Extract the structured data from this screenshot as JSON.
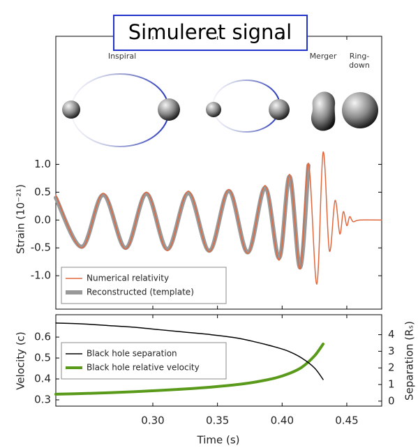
{
  "chart_data": [
    {
      "type": "line",
      "title": "Simuleret signal",
      "ylabel": "Strain (10⁻²¹)",
      "annotations": [
        "Inspiral",
        "Merger",
        "Ring-\ndown"
      ],
      "x": [
        0.225,
        0.245,
        0.2617,
        0.279,
        0.2951,
        0.3113,
        0.3275,
        0.3437,
        0.3588,
        0.3734,
        0.3869,
        0.3977,
        0.4058,
        0.4139,
        0.4203,
        0.4268,
        0.4317,
        0.4365,
        0.4409,
        0.4446,
        0.4473,
        0.45,
        0.4522,
        0.4549,
        0.4597,
        0.477
      ],
      "series": [
        {
          "name": "Numerical relativity",
          "color": "#e0683f",
          "width": 1.5,
          "values": [
            0.45,
            -0.5,
            0.48,
            -0.52,
            0.5,
            -0.55,
            0.52,
            -0.57,
            0.55,
            -0.6,
            0.62,
            -0.72,
            0.82,
            -0.88,
            1.02,
            -1.15,
            1.22,
            -0.55,
            0.35,
            -0.25,
            0.15,
            -0.1,
            0.06,
            -0.03,
            0,
            0
          ]
        },
        {
          "name": "Reconstructed (template)",
          "color": "#999999",
          "width": 6,
          "values": [
            0.4,
            -0.48,
            0.45,
            -0.5,
            0.47,
            -0.52,
            0.48,
            -0.55,
            0.52,
            -0.58,
            0.58,
            -0.68,
            0.78,
            -0.85,
            0.98,
            null,
            null,
            null,
            null,
            null,
            null,
            null,
            null,
            null,
            null,
            null
          ]
        }
      ],
      "xlim": [
        0.225,
        0.477
      ],
      "xticks": [
        0.3,
        0.35,
        0.4,
        0.45
      ],
      "ylim": [
        -1.6,
        3.3
      ],
      "yticks": [
        {
          "value": 1.0,
          "label": "1.0"
        },
        {
          "value": 0.5,
          "label": "0.5"
        },
        {
          "value": 0.0,
          "label": "0.0"
        },
        {
          "value": -0.5,
          "label": "-0.5"
        },
        {
          "value": -1.0,
          "label": "-1.0"
        }
      ],
      "legend": "lower left"
    },
    {
      "type": "line",
      "xlabel": "Time (s)",
      "ylabel": "Velocity (c)",
      "y2label": "Separation (Rₛ)",
      "x": [
        0.225,
        0.245,
        0.265,
        0.285,
        0.305,
        0.325,
        0.345,
        0.365,
        0.38,
        0.395,
        0.405,
        0.415,
        0.425,
        0.4317
      ],
      "series": [
        {
          "name": "Black hole separation",
          "color": "#000000",
          "width": 1.5,
          "axis": "y2",
          "values": [
            4.7,
            4.65,
            4.55,
            4.45,
            4.3,
            4.15,
            4.0,
            3.8,
            3.55,
            3.25,
            3.0,
            2.6,
            2.0,
            1.3
          ]
        },
        {
          "name": "Black hole relative velocity",
          "color": "#5a9a1a",
          "width": 4,
          "values": [
            0.327,
            0.33,
            0.334,
            0.339,
            0.345,
            0.352,
            0.361,
            0.373,
            0.386,
            0.405,
            0.425,
            0.455,
            0.51,
            0.567
          ]
        }
      ],
      "xlim": [
        0.225,
        0.477
      ],
      "xticks": [
        {
          "value": 0.3,
          "label": "0.30"
        },
        {
          "value": 0.35,
          "label": "0.35"
        },
        {
          "value": 0.4,
          "label": "0.40"
        },
        {
          "value": 0.45,
          "label": "0.45"
        }
      ],
      "ylim": [
        0.27,
        0.707
      ],
      "yticks": [
        0.6,
        0.5,
        0.4,
        0.3
      ],
      "y2lim": [
        -0.3,
        5.2
      ],
      "y2ticks": [
        4,
        3,
        2,
        1,
        0
      ],
      "legend": "center left"
    }
  ]
}
